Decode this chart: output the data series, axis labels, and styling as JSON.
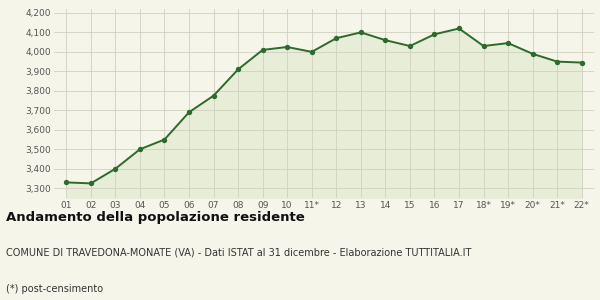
{
  "x_labels": [
    "01",
    "02",
    "03",
    "04",
    "05",
    "06",
    "07",
    "08",
    "09",
    "10",
    "11*",
    "12",
    "13",
    "14",
    "15",
    "16",
    "17",
    "18*",
    "19*",
    "20*",
    "21*",
    "22*"
  ],
  "y_values": [
    3330,
    3325,
    3400,
    3500,
    3550,
    3690,
    3775,
    3910,
    4010,
    4025,
    4000,
    4070,
    4100,
    4060,
    4030,
    4090,
    4120,
    4030,
    4045,
    3990,
    3950,
    3945
  ],
  "line_color": "#2d6a2d",
  "fill_color": "#e8edd8",
  "marker_color": "#2d6a2d",
  "bg_color": "#f5f5ea",
  "grid_color": "#d0d0c0",
  "ylim": [
    3250,
    4220
  ],
  "yticks": [
    3300,
    3400,
    3500,
    3600,
    3700,
    3800,
    3900,
    4000,
    4100,
    4200
  ],
  "title": "Andamento della popolazione residente",
  "subtitle": "COMUNE DI TRAVEDONA-MONATE (VA) - Dati ISTAT al 31 dicembre - Elaborazione TUTTITALIA.IT",
  "footnote": "(*) post-censimento",
  "title_fontsize": 9.5,
  "subtitle_fontsize": 7,
  "footnote_fontsize": 7
}
